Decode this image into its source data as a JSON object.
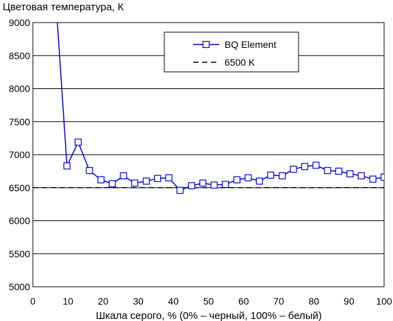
{
  "chart_data": {
    "type": "line",
    "title": "",
    "ylabel": "Цветовая температура, К",
    "xlabel": "Шкала серого, % (0% – черный, 100% – белый)",
    "xlim": [
      0,
      100
    ],
    "ylim": [
      5000,
      9000
    ],
    "xticks": [
      0,
      10,
      20,
      30,
      40,
      50,
      60,
      70,
      80,
      90,
      100
    ],
    "yticks": [
      5000,
      5500,
      6000,
      6500,
      7000,
      7500,
      8000,
      8500,
      9000
    ],
    "grid": "horizontal",
    "legend_position": "top-right",
    "series": [
      {
        "name": "BQ Element",
        "color": "#0000cc",
        "marker": "square-open",
        "x": [
          3.2,
          9.7,
          12.9,
          16.1,
          19.4,
          22.6,
          25.8,
          29.0,
          32.3,
          35.5,
          38.7,
          41.9,
          45.2,
          48.4,
          51.6,
          54.8,
          58.1,
          61.3,
          64.5,
          67.7,
          71.0,
          74.2,
          77.4,
          80.6,
          83.9,
          87.1,
          90.3,
          93.5,
          96.8,
          100
        ],
        "y": [
          12000,
          6830,
          7190,
          6760,
          6620,
          6560,
          6680,
          6570,
          6600,
          6640,
          6650,
          6460,
          6530,
          6570,
          6540,
          6550,
          6620,
          6650,
          6600,
          6690,
          6680,
          6780,
          6820,
          6840,
          6760,
          6750,
          6710,
          6680,
          6630,
          6660
        ]
      },
      {
        "name": "6500 K",
        "color": "#000000",
        "style": "dashed",
        "x": [
          0,
          100
        ],
        "y": [
          6500,
          6500
        ]
      }
    ]
  }
}
